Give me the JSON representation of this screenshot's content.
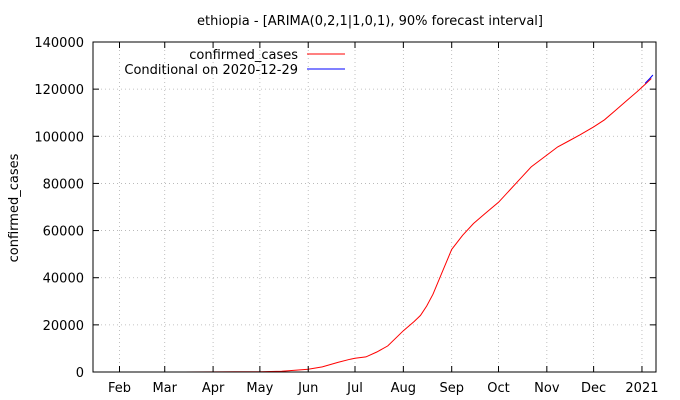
{
  "chart_data": {
    "type": "line",
    "title": "ethiopia -  [ARIMA(0,2,1|1,0,1), 90% forecast interval]",
    "xlabel": "",
    "ylabel": "confirmed_cases",
    "ylim": [
      0,
      140000
    ],
    "y_ticks": [
      0,
      20000,
      40000,
      60000,
      80000,
      100000,
      120000,
      140000
    ],
    "x_range": [
      "2020-01-15",
      "2021-01-10"
    ],
    "x_ticks": [
      {
        "date": "2020-02-01",
        "label": "Feb"
      },
      {
        "date": "2020-03-01",
        "label": "Mar"
      },
      {
        "date": "2020-04-01",
        "label": "Apr"
      },
      {
        "date": "2020-05-01",
        "label": "May"
      },
      {
        "date": "2020-06-01",
        "label": "Jun"
      },
      {
        "date": "2020-07-01",
        "label": "Jul"
      },
      {
        "date": "2020-08-01",
        "label": "Aug"
      },
      {
        "date": "2020-09-01",
        "label": "Sep"
      },
      {
        "date": "2020-10-01",
        "label": "Oct"
      },
      {
        "date": "2020-11-01",
        "label": "Nov"
      },
      {
        "date": "2020-12-01",
        "label": "Dec"
      },
      {
        "date": "2021-01-01",
        "label": "2021"
      }
    ],
    "grid": true,
    "legend_position": "top-left",
    "series": [
      {
        "name": "confirmed_cases",
        "color": "#ff0000",
        "points": [
          [
            "2020-03-13",
            1
          ],
          [
            "2020-04-01",
            29
          ],
          [
            "2020-04-15",
            82
          ],
          [
            "2020-05-01",
            133
          ],
          [
            "2020-05-15",
            287
          ],
          [
            "2020-06-01",
            1172
          ],
          [
            "2020-06-10",
            2156
          ],
          [
            "2020-06-20",
            4070
          ],
          [
            "2020-06-28",
            5425
          ],
          [
            "2020-07-01",
            5846
          ],
          [
            "2020-07-08",
            6386
          ],
          [
            "2020-07-15",
            8475
          ],
          [
            "2020-07-22",
            11072
          ],
          [
            "2020-08-01",
            17530
          ],
          [
            "2020-08-08",
            21452
          ],
          [
            "2020-08-12",
            24000
          ],
          [
            "2020-08-16",
            28000
          ],
          [
            "2020-08-20",
            33000
          ],
          [
            "2020-08-25",
            41000
          ],
          [
            "2020-09-01",
            52000
          ],
          [
            "2020-09-08",
            58000
          ],
          [
            "2020-09-15",
            63000
          ],
          [
            "2020-09-22",
            67000
          ],
          [
            "2020-10-01",
            72000
          ],
          [
            "2020-10-08",
            77000
          ],
          [
            "2020-10-15",
            82000
          ],
          [
            "2020-10-22",
            87000
          ],
          [
            "2020-11-01",
            92000
          ],
          [
            "2020-11-08",
            95500
          ],
          [
            "2020-11-15",
            98000
          ],
          [
            "2020-11-22",
            100500
          ],
          [
            "2020-12-01",
            104000
          ],
          [
            "2020-12-08",
            107000
          ],
          [
            "2020-12-15",
            111000
          ],
          [
            "2020-12-22",
            115000
          ],
          [
            "2020-12-29",
            119000
          ],
          [
            "2021-01-03",
            122000
          ],
          [
            "2021-01-07",
            124500
          ]
        ]
      },
      {
        "name": "Conditional on 2020-12-29",
        "color": "#0000ff",
        "points": [
          [
            "2021-01-03",
            122500
          ],
          [
            "2021-01-06",
            124500
          ],
          [
            "2021-01-08",
            126000
          ]
        ]
      }
    ]
  }
}
